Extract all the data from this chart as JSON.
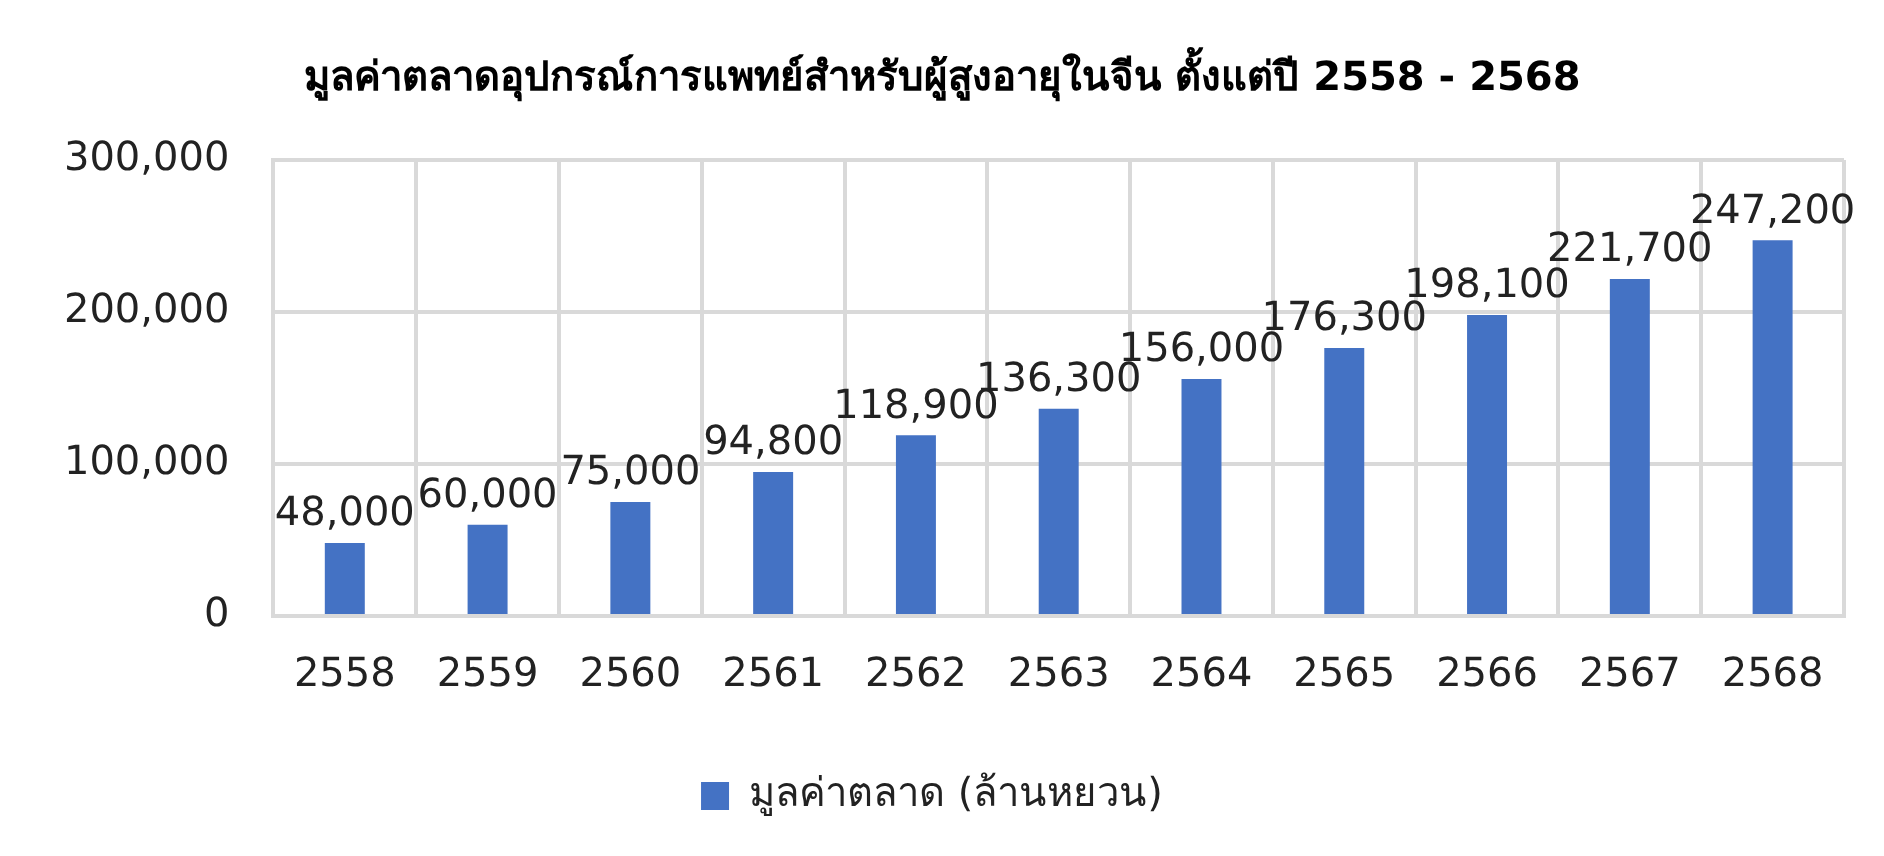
{
  "chart_data": {
    "type": "bar",
    "title": "มูลค่าตลาดอุปกรณ์การแพทย์สำหรับผู้สูงอายุในจีน ตั้งแต่ปี 2558 - 2568",
    "categories": [
      "2558",
      "2559",
      "2560",
      "2561",
      "2562",
      "2563",
      "2564",
      "2565",
      "2566",
      "2567",
      "2568"
    ],
    "series": [
      {
        "name": "มูลค่าตลาด (ล้านหยวน)",
        "color": "#4472c4",
        "values": [
          48000,
          60000,
          75000,
          94800,
          118900,
          136300,
          156000,
          176300,
          198100,
          221700,
          247200
        ],
        "value_labels": [
          "48,000",
          "60,000",
          "75,000",
          "94,800",
          "118,900",
          "136,300",
          "156,000",
          "176,300",
          "198,100",
          "221,700",
          "247,200"
        ]
      }
    ],
    "ylim": [
      0,
      300000
    ],
    "yticks": [
      0,
      {
        "value": 100000,
        "label": "100,000"
      },
      {
        "value": 200000,
        "label": "200,000"
      },
      {
        "value": 300000,
        "label": "300,000"
      }
    ],
    "grid": true,
    "legend": "bottom"
  }
}
